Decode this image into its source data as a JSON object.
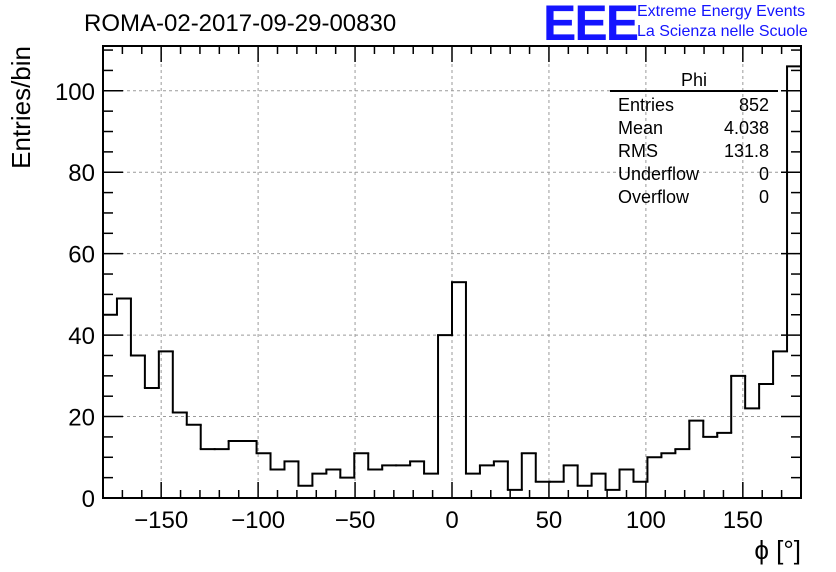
{
  "header": {
    "title": "ROMA-02-2017-09-29-00830",
    "logo_mark": "EEE",
    "logo_line1": "Extreme Energy Events",
    "logo_line2": "La Scienza nelle Scuole"
  },
  "stats": {
    "name": "Phi",
    "rows": [
      {
        "label": "Entries",
        "value": "852"
      },
      {
        "label": "Mean",
        "value": "4.038"
      },
      {
        "label": "RMS",
        "value": "131.8"
      },
      {
        "label": "Underflow",
        "value": "0"
      },
      {
        "label": "Overflow",
        "value": "0"
      }
    ]
  },
  "chart_data": {
    "type": "histogram",
    "title": "ROMA-02-2017-09-29-00830",
    "xlabel": "ϕ [°]",
    "ylabel": "Entries/bin",
    "xlim": [
      -180,
      180
    ],
    "ylim": [
      0,
      111
    ],
    "bin_width": 7.2,
    "grid": true,
    "x_ticks": [
      -150,
      -100,
      -50,
      0,
      50,
      100,
      150
    ],
    "x_tick_labels": [
      "−150",
      "−100",
      "−50",
      "0",
      "50",
      "100",
      "150"
    ],
    "y_ticks": [
      0,
      20,
      40,
      60,
      80,
      100
    ],
    "y_tick_labels": [
      "0",
      "20",
      "40",
      "60",
      "80",
      "100"
    ],
    "bin_edges_start": -180,
    "values": [
      45,
      49,
      35,
      27,
      36,
      21,
      18,
      12,
      12,
      14,
      14,
      11,
      7,
      9,
      3,
      6,
      7,
      5,
      11,
      7,
      8,
      8,
      9,
      6,
      40,
      53,
      6,
      8,
      9,
      2,
      11,
      4,
      4,
      8,
      3,
      6,
      2,
      7,
      4,
      10,
      11,
      12,
      19,
      15,
      16,
      30,
      22,
      28,
      36,
      106
    ],
    "color": "#000000"
  }
}
